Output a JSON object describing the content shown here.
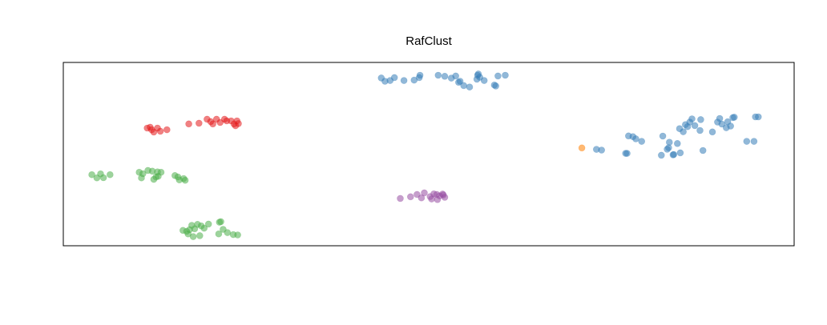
{
  "chart_data": {
    "type": "scatter",
    "title": "RafClust",
    "xlabel": "",
    "ylabel": "",
    "axes_visible": false,
    "grid": false,
    "xlim": [
      0,
      100
    ],
    "ylim": [
      0,
      100
    ],
    "colors": {
      "red": "#e41a1c",
      "blue": "#377eb8",
      "green": "#4daf4a",
      "purple": "#984ea3",
      "orange": "#ff7f00"
    },
    "series": [
      {
        "color": "#e41a1c",
        "points": [
          [
            11.4,
            64.3
          ],
          [
            11.8,
            64.8
          ],
          [
            12.0,
            63.4
          ],
          [
            12.3,
            62.1
          ],
          [
            12.8,
            64.3
          ],
          [
            13.2,
            62.6
          ],
          [
            14.1,
            63.4
          ],
          [
            17.1,
            66.6
          ],
          [
            18.5,
            67.0
          ],
          [
            19.6,
            69.2
          ],
          [
            20.1,
            67.9
          ],
          [
            20.4,
            66.6
          ],
          [
            20.9,
            69.2
          ],
          [
            21.4,
            67.4
          ],
          [
            22.0,
            69.2
          ],
          [
            22.3,
            68.3
          ],
          [
            22.9,
            68.3
          ],
          [
            23.3,
            66.6
          ],
          [
            23.7,
            68.3
          ],
          [
            23.5,
            65.6
          ],
          [
            23.9,
            66.8
          ]
        ]
      },
      {
        "color": "#377eb8",
        "points": [
          [
            43.5,
            91.9
          ],
          [
            44.0,
            90.1
          ],
          [
            44.7,
            90.5
          ],
          [
            45.3,
            92.1
          ],
          [
            46.6,
            90.5
          ],
          [
            48.0,
            90.7
          ],
          [
            48.7,
            92.1
          ],
          [
            48.8,
            93.4
          ],
          [
            51.3,
            93.4
          ],
          [
            52.2,
            92.8
          ],
          [
            53.1,
            91.8
          ],
          [
            53.7,
            93.0
          ],
          [
            54.1,
            89.5
          ],
          [
            54.3,
            90.1
          ],
          [
            54.8,
            87.7
          ],
          [
            55.6,
            86.9
          ],
          [
            56.6,
            91.2
          ],
          [
            56.7,
            93.4
          ],
          [
            56.8,
            94.1
          ],
          [
            57.0,
            92.3
          ],
          [
            57.6,
            90.5
          ],
          [
            59.0,
            88.0
          ],
          [
            59.2,
            87.5
          ],
          [
            59.5,
            93.0
          ],
          [
            60.5,
            93.4
          ],
          [
            73.0,
            52.6
          ],
          [
            73.7,
            52.2
          ],
          [
            77.0,
            50.4
          ],
          [
            77.2,
            50.4
          ],
          [
            77.4,
            60.0
          ],
          [
            78.0,
            59.6
          ],
          [
            78.4,
            58.4
          ],
          [
            79.2,
            57.0
          ],
          [
            82.1,
            59.9
          ],
          [
            81.9,
            49.4
          ],
          [
            82.7,
            52.7
          ],
          [
            82.9,
            53.5
          ],
          [
            83.0,
            56.5
          ],
          [
            83.5,
            49.6
          ],
          [
            83.6,
            49.8
          ],
          [
            84.1,
            55.8
          ],
          [
            84.5,
            50.7
          ],
          [
            84.4,
            64.0
          ],
          [
            84.9,
            62.3
          ],
          [
            85.2,
            66.2
          ],
          [
            85.5,
            65.1
          ],
          [
            85.8,
            67.6
          ],
          [
            86.5,
            65.7
          ],
          [
            86.1,
            69.4
          ],
          [
            87.3,
            69.0
          ],
          [
            87.2,
            63.0
          ],
          [
            87.6,
            52.0
          ],
          [
            88.9,
            62.2
          ],
          [
            89.6,
            67.6
          ],
          [
            89.9,
            69.6
          ],
          [
            90.2,
            66.5
          ],
          [
            90.8,
            64.5
          ],
          [
            91.0,
            67.8
          ],
          [
            91.4,
            65.4
          ],
          [
            91.7,
            70.1
          ],
          [
            91.9,
            70.3
          ],
          [
            93.6,
            57.0
          ],
          [
            94.6,
            57.0
          ],
          [
            94.8,
            70.5
          ],
          [
            95.2,
            70.5
          ]
        ]
      },
      {
        "color": "#ff7f00",
        "points": [
          [
            71.0,
            53.4
          ]
        ]
      },
      {
        "color": "#4daf4a",
        "points": [
          [
            3.8,
            38.7
          ],
          [
            4.5,
            36.9
          ],
          [
            5.0,
            39.1
          ],
          [
            5.4,
            37.0
          ],
          [
            6.3,
            38.7
          ],
          [
            10.3,
            40.0
          ],
          [
            10.6,
            36.9
          ],
          [
            10.8,
            39.2
          ],
          [
            11.5,
            41.0
          ],
          [
            12.1,
            40.6
          ],
          [
            12.3,
            36.1
          ],
          [
            12.6,
            37.4
          ],
          [
            12.9,
            37.8
          ],
          [
            12.8,
            40.2
          ],
          [
            13.3,
            40.0
          ],
          [
            15.2,
            38.2
          ],
          [
            15.6,
            37.4
          ],
          [
            16.4,
            36.5
          ],
          [
            15.8,
            35.8
          ],
          [
            16.6,
            35.6
          ],
          [
            16.3,
            8.0
          ],
          [
            16.8,
            7.5
          ],
          [
            17.0,
            6.1
          ],
          [
            17.2,
            8.4
          ],
          [
            17.5,
            10.8
          ],
          [
            17.7,
            4.6
          ],
          [
            17.9,
            8.9
          ],
          [
            18.3,
            11.3
          ],
          [
            18.6,
            5.1
          ],
          [
            18.8,
            10.5
          ],
          [
            19.2,
            9.2
          ],
          [
            19.8,
            11.5
          ],
          [
            21.2,
            6.1
          ],
          [
            21.8,
            8.6
          ],
          [
            21.3,
            12.5
          ],
          [
            21.5,
            12.8
          ],
          [
            22.4,
            6.8
          ],
          [
            23.2,
            5.7
          ],
          [
            23.8,
            5.5
          ]
        ]
      },
      {
        "color": "#984ea3",
        "points": [
          [
            46.1,
            25.6
          ],
          [
            47.5,
            26.5
          ],
          [
            48.4,
            27.8
          ],
          [
            49.0,
            25.9
          ],
          [
            49.4,
            28.7
          ],
          [
            50.2,
            26.6
          ],
          [
            50.4,
            25.3
          ],
          [
            50.7,
            28.1
          ],
          [
            51.1,
            27.8
          ],
          [
            51.2,
            25.0
          ],
          [
            51.5,
            27.0
          ],
          [
            51.9,
            28.0
          ],
          [
            52.2,
            26.2
          ],
          [
            52.0,
            27.5
          ]
        ]
      }
    ]
  }
}
